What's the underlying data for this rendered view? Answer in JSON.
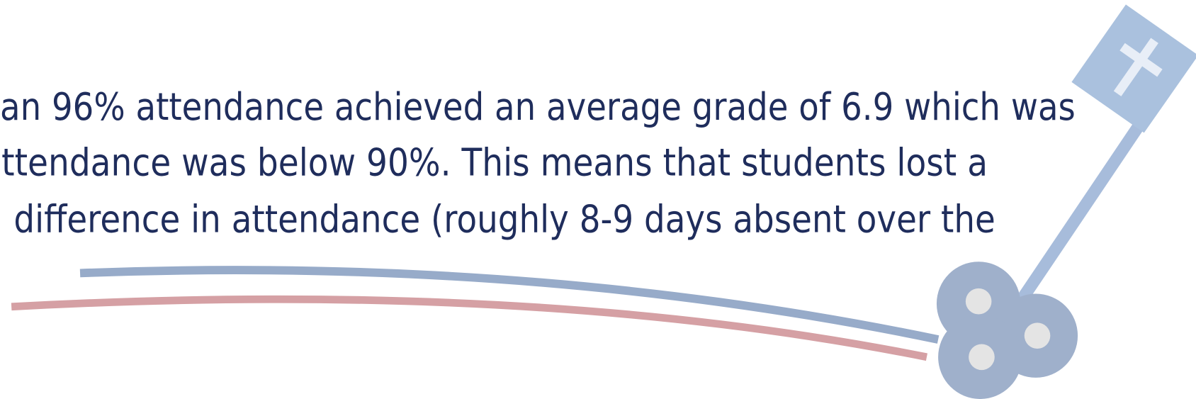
{
  "body": {
    "lines": [
      "an 96% attendance achieved an average grade of 6.9 which was",
      "ttendance was below 90%. This means that students lost a",
      "difference in attendance (roughly 8-9 days absent over the"
    ]
  }
}
